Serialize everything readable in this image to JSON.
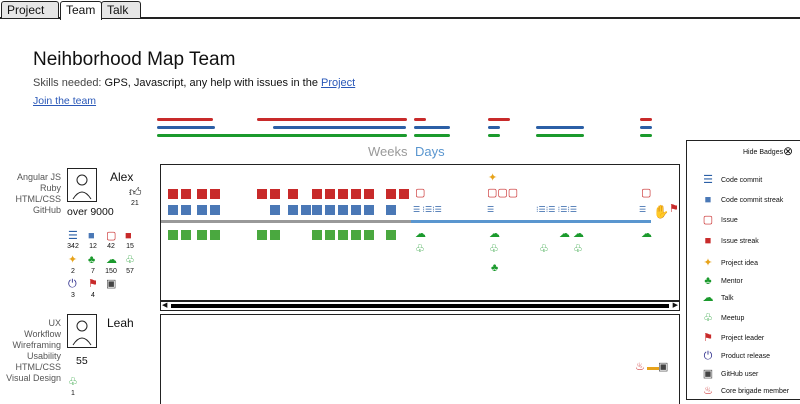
{
  "tabs": [
    {
      "label": "Project"
    },
    {
      "label": "Team"
    },
    {
      "label": "Talk"
    }
  ],
  "title": "Neihborhood Map Team",
  "skills_label": "Skills needed:",
  "skills_value": " GPS, Javascript, any help with issues in the ",
  "skills_link": "Project",
  "join_label": "Join the team",
  "timescale": {
    "weeks": "Weeks",
    "days": "Days"
  },
  "colors": {
    "red": "#c82a2a",
    "blue": "#2b5fa6",
    "green": "#1b9a2d",
    "days_blue": "#5a96cf"
  },
  "members": [
    {
      "name": "Alex",
      "skills": [
        "Angular JS",
        "Ruby",
        "HTML/CSS",
        "GitHub"
      ],
      "likes": "21",
      "score": "over 9000",
      "badges": [
        {
          "icon": "code-commit-icon",
          "glyph": "☰",
          "count": "342"
        },
        {
          "icon": "code-commit-streak-icon",
          "glyph": "■",
          "count": "12"
        },
        {
          "icon": "issue-icon",
          "glyph": "⬚",
          "count": "42"
        },
        {
          "icon": "issue-streak-icon",
          "glyph": "⬛",
          "count": "15"
        },
        {
          "icon": "project-idea-icon",
          "glyph": "♦",
          "count": "2"
        },
        {
          "icon": "mentor-icon",
          "glyph": "♣",
          "count": "7"
        },
        {
          "icon": "talk-icon",
          "glyph": "☁",
          "count": "150"
        },
        {
          "icon": "meetup-icon",
          "glyph": "♧",
          "count": "57"
        },
        {
          "icon": "product-release-icon",
          "glyph": "⏻",
          "count": "3"
        },
        {
          "icon": "project-leader-icon",
          "glyph": "⚑",
          "count": "4"
        },
        {
          "icon": "github-user-icon",
          "glyph": "▣",
          "count": ""
        }
      ]
    },
    {
      "name": "Leah",
      "skills": [
        "UX",
        "Workflow",
        "Wireframing",
        "Usability",
        "HTML/CSS",
        "Visual Design"
      ],
      "score": "55",
      "badges": [
        {
          "icon": "meetup-icon",
          "glyph": "♧",
          "count": "1"
        }
      ]
    }
  ],
  "legend": {
    "hide_label": "Hide Badges",
    "items": [
      {
        "label": "Code commit",
        "icon": "code-commit-icon",
        "glyph": "☰",
        "color": "#2b5fa6"
      },
      {
        "label": "Code commit streak",
        "icon": "code-commit-streak-icon",
        "glyph": "■",
        "color": "#2b5fa6"
      },
      {
        "label": "Issue",
        "icon": "issue-icon",
        "glyph": "▢",
        "color": "#c82a2a"
      },
      {
        "label": "Issue streak",
        "icon": "issue-streak-icon",
        "glyph": "■",
        "color": "#c82a2a"
      },
      {
        "label": "Project idea",
        "icon": "project-idea-icon",
        "glyph": "✦",
        "color": "#e7a31b"
      },
      {
        "label": "Mentor",
        "icon": "mentor-icon",
        "glyph": "♣",
        "color": "#1b9a2d"
      },
      {
        "label": "Talk",
        "icon": "talk-icon",
        "glyph": "☁",
        "color": "#1b9a2d"
      },
      {
        "label": "Meetup",
        "icon": "meetup-icon",
        "glyph": "♧",
        "color": "#1b9a2d"
      },
      {
        "label": "Project leader",
        "icon": "project-leader-icon",
        "glyph": "⚑",
        "color": "#c82a2a"
      },
      {
        "label": "Product release",
        "icon": "product-release-icon",
        "glyph": "⏻",
        "color": "#2d2d8c"
      },
      {
        "label": "GitHub user",
        "icon": "github-user-icon",
        "glyph": "▣",
        "color": "#444"
      },
      {
        "label": "Core brigade member",
        "icon": "core-brigade-member-icon",
        "glyph": "♨",
        "color": "#c82a2a"
      }
    ]
  }
}
